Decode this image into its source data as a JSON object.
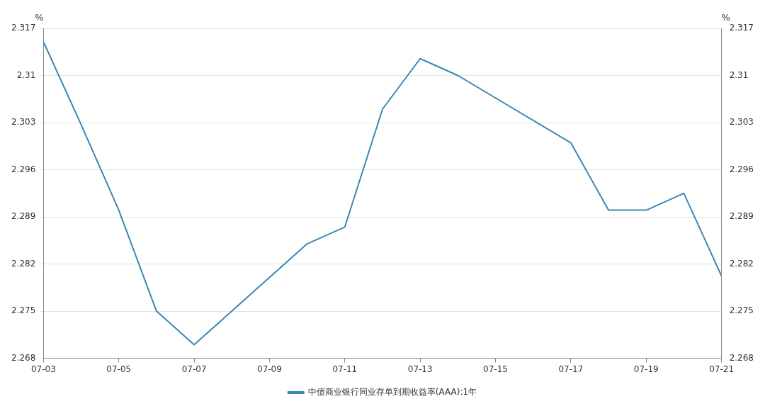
{
  "chart_data": {
    "type": "line",
    "ylabel": "%",
    "y2label": "%",
    "x": [
      "--07-03",
      "--07-04",
      "--07-05",
      "--07-06",
      "--07-07",
      "--07-10",
      "--07-11",
      "--07-12",
      "--07-13",
      "--07-14",
      "--07-17",
      "--07-18",
      "--07-19",
      "--07-20",
      "--07-21"
    ],
    "series": [
      {
        "name": "中债商业银行同业存单到期收益率(AAA):1年",
        "color": "#3a87b3",
        "values": [
          2.315,
          2.3027,
          2.29,
          2.275,
          2.27,
          2.285,
          2.2875,
          2.305,
          2.3125,
          2.31,
          2.3,
          2.29,
          2.29,
          2.2925,
          2.2802
        ]
      }
    ],
    "xlim": [
      "--07-03",
      "--07-21"
    ],
    "xticks": [
      {
        "value": "--07-03",
        "label": "07-03"
      },
      {
        "value": "--07-05",
        "label": "07-05"
      },
      {
        "value": "--07-07",
        "label": "07-07"
      },
      {
        "value": "--07-09",
        "label": "07-09"
      },
      {
        "value": "--07-11",
        "label": "07-11"
      },
      {
        "value": "--07-13",
        "label": "07-13"
      },
      {
        "value": "--07-15",
        "label": "07-15"
      },
      {
        "value": "--07-17",
        "label": "07-17"
      },
      {
        "value": "--07-19",
        "label": "07-19"
      },
      {
        "value": "--07-21",
        "label": "07-21"
      }
    ],
    "ylim": [
      2.268,
      2.317
    ],
    "yticks": [
      2.268,
      2.275,
      2.282,
      2.289,
      2.296,
      2.303,
      2.31,
      2.317
    ],
    "y2lim": [
      2.268,
      2.317
    ],
    "y2ticks": [
      2.268,
      2.275,
      2.282,
      2.289,
      2.296,
      2.303,
      2.31,
      2.317
    ],
    "grid": "y",
    "legend": "bottom",
    "marker": "none",
    "line_style": "solid"
  }
}
